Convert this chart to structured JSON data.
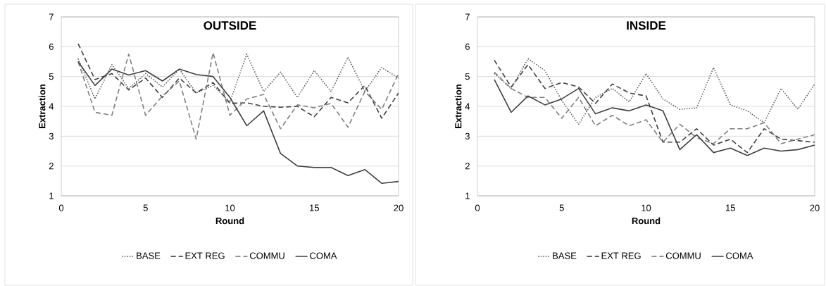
{
  "chart_data": [
    {
      "type": "line",
      "title": "OUTSIDE",
      "xlabel": "Round",
      "ylabel": "Extraction",
      "x": [
        1,
        2,
        3,
        4,
        5,
        6,
        7,
        8,
        9,
        10,
        11,
        12,
        13,
        14,
        15,
        16,
        17,
        18,
        19,
        20
      ],
      "xlim": [
        0,
        20
      ],
      "xticks": [
        0,
        5,
        10,
        15,
        20
      ],
      "ylim": [
        1,
        7
      ],
      "yticks": [
        1,
        2,
        3,
        4,
        5,
        6,
        7
      ],
      "grid": "y",
      "legend": "bottom",
      "series": [
        {
          "name": "BASE",
          "color": "#595959",
          "line_style": "dotted",
          "values": [
            5.6,
            4.25,
            5.4,
            4.6,
            5.1,
            4.65,
            5.25,
            4.45,
            4.7,
            4.15,
            5.75,
            4.5,
            5.15,
            4.3,
            5.2,
            4.5,
            5.65,
            4.5,
            5.3,
            4.95
          ]
        },
        {
          "name": "EXT REG",
          "color": "#404040",
          "line_style": "dashed",
          "values": [
            6.1,
            4.9,
            5.1,
            4.55,
            4.95,
            4.3,
            4.95,
            4.45,
            4.8,
            4.1,
            4.12,
            4.0,
            3.97,
            4.0,
            3.65,
            4.3,
            4.12,
            4.7,
            3.6,
            4.45
          ]
        },
        {
          "name": "COMMU",
          "color": "#808080",
          "line_style": "dashed",
          "values": [
            5.5,
            3.8,
            3.7,
            5.75,
            3.7,
            4.35,
            4.85,
            2.9,
            5.8,
            3.7,
            4.25,
            4.4,
            3.25,
            4.05,
            3.95,
            4.1,
            3.3,
            4.5,
            3.9,
            5.1
          ]
        },
        {
          "name": "COMA",
          "color": "#404040",
          "line_style": "solid",
          "values": [
            5.5,
            4.7,
            5.25,
            5.05,
            5.2,
            4.85,
            5.25,
            5.07,
            5.0,
            4.3,
            3.35,
            3.85,
            2.42,
            2.0,
            1.95,
            1.95,
            1.68,
            1.88,
            1.42,
            1.48
          ]
        }
      ]
    },
    {
      "type": "line",
      "title": "INSIDE",
      "xlabel": "Round",
      "ylabel": "Extraction",
      "x": [
        1,
        2,
        3,
        4,
        5,
        6,
        7,
        8,
        9,
        10,
        11,
        12,
        13,
        14,
        15,
        16,
        17,
        18,
        19,
        20
      ],
      "xlim": [
        0,
        20
      ],
      "xticks": [
        0,
        5,
        10,
        15,
        20
      ],
      "ylim": [
        1,
        7
      ],
      "yticks": [
        1,
        2,
        3,
        4,
        5,
        6,
        7
      ],
      "grid": "y",
      "legend": "bottom",
      "series": [
        {
          "name": "BASE",
          "color": "#595959",
          "line_style": "dotted",
          "values": [
            5.1,
            4.6,
            5.6,
            5.2,
            4.2,
            3.4,
            4.3,
            4.6,
            4.15,
            5.1,
            4.25,
            3.9,
            3.95,
            5.3,
            4.05,
            3.85,
            3.45,
            4.6,
            3.9,
            4.75
          ]
        },
        {
          "name": "EXT REG",
          "color": "#404040",
          "line_style": "dashed",
          "values": [
            5.55,
            4.65,
            5.4,
            4.6,
            4.8,
            4.65,
            4.1,
            4.75,
            4.45,
            4.35,
            2.8,
            2.8,
            3.25,
            2.7,
            2.9,
            2.45,
            3.25,
            2.9,
            2.85,
            2.8
          ]
        },
        {
          "name": "COMMU",
          "color": "#808080",
          "line_style": "dashed",
          "values": [
            5.15,
            4.6,
            4.3,
            4.3,
            3.6,
            4.3,
            3.35,
            3.7,
            3.35,
            3.55,
            2.8,
            3.4,
            2.95,
            2.75,
            3.25,
            3.25,
            3.45,
            2.75,
            2.9,
            3.05
          ]
        },
        {
          "name": "COMA",
          "color": "#404040",
          "line_style": "solid",
          "values": [
            4.9,
            3.8,
            4.35,
            4.05,
            4.25,
            4.6,
            3.75,
            3.95,
            3.85,
            4.05,
            3.85,
            2.55,
            3.05,
            2.45,
            2.6,
            2.35,
            2.6,
            2.5,
            2.55,
            2.7
          ]
        }
      ]
    }
  ]
}
